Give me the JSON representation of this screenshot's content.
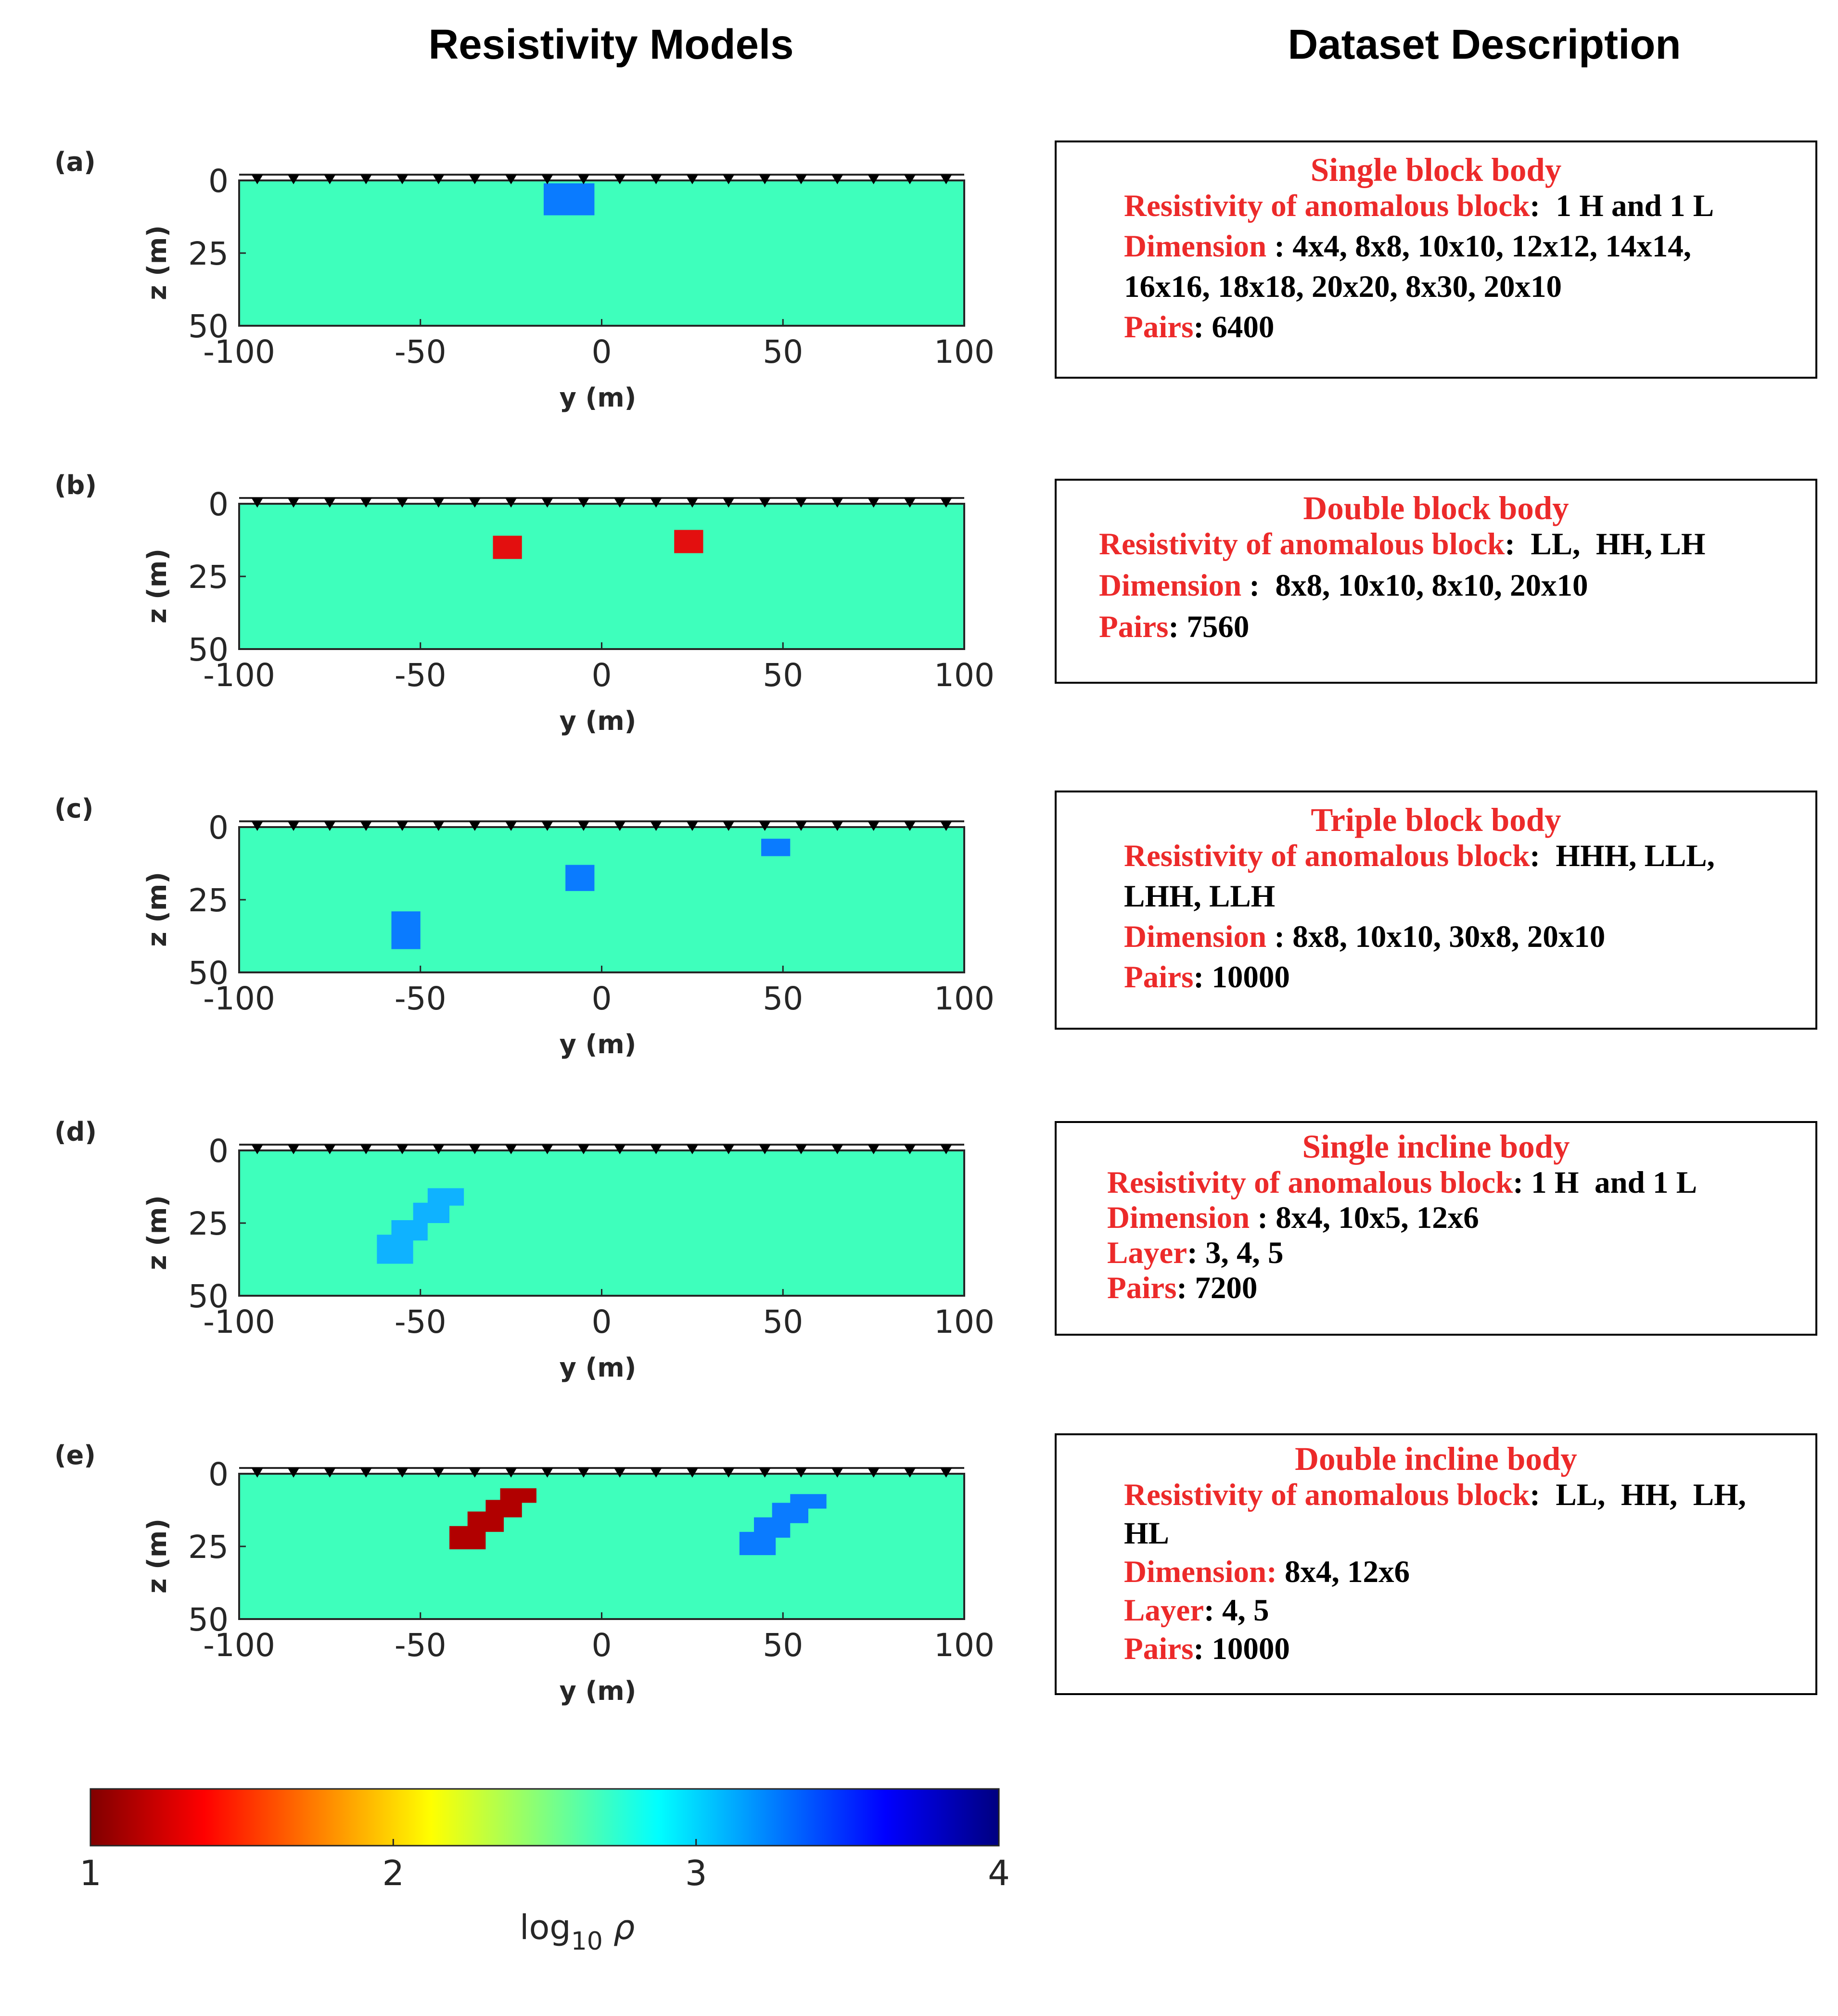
{
  "headers": {
    "left": "Resistivity Models",
    "right": "Dataset Description"
  },
  "colors": {
    "background": "#3effbc",
    "low": "#b10000",
    "mid_blue": "#0a7bff",
    "light_blue": "#0fb2ff",
    "red": "#e30f0f",
    "label_red": "#ec2a2a"
  },
  "panels": [
    {
      "id": "(a)",
      "xlabel": "y (m)",
      "ylabel": "z (m)",
      "xticks": [
        "-100",
        "-50",
        "0",
        "50",
        "100"
      ],
      "yticks": [
        "0",
        "25",
        "50"
      ],
      "xlim": [
        -100,
        100
      ],
      "ylim": [
        0,
        50
      ],
      "blocks": [
        {
          "y0": -16,
          "y1": -2,
          "z0": 1,
          "z1": 12,
          "color": "#0a7bff"
        }
      ]
    },
    {
      "id": "(b)",
      "xlabel": "y (m)",
      "ylabel": "z (m)",
      "xticks": [
        "-100",
        "-50",
        "0",
        "50",
        "100"
      ],
      "yticks": [
        "0",
        "25",
        "50"
      ],
      "xlim": [
        -100,
        100
      ],
      "ylim": [
        0,
        50
      ],
      "blocks": [
        {
          "y0": -30,
          "y1": -22,
          "z0": 11,
          "z1": 19,
          "color": "#e30f0f"
        },
        {
          "y0": 20,
          "y1": 28,
          "z0": 9,
          "z1": 17,
          "color": "#e30f0f"
        }
      ]
    },
    {
      "id": "(c)",
      "xlabel": "y (m)",
      "ylabel": "z (m)",
      "xticks": [
        "-100",
        "-50",
        "0",
        "50",
        "100"
      ],
      "yticks": [
        "0",
        "25",
        "50"
      ],
      "xlim": [
        -100,
        100
      ],
      "ylim": [
        0,
        50
      ],
      "blocks": [
        {
          "y0": -58,
          "y1": -50,
          "z0": 29,
          "z1": 42,
          "color": "#0a7bff"
        },
        {
          "y0": -10,
          "y1": -2,
          "z0": 13,
          "z1": 22,
          "color": "#0a7bff"
        },
        {
          "y0": 44,
          "y1": 52,
          "z0": 4,
          "z1": 10,
          "color": "#0a7bff"
        }
      ]
    },
    {
      "id": "(d)",
      "xlabel": "y (m)",
      "ylabel": "z (m)",
      "xticks": [
        "-100",
        "-50",
        "0",
        "50",
        "100"
      ],
      "yticks": [
        "0",
        "25",
        "50"
      ],
      "xlim": [
        -100,
        100
      ],
      "ylim": [
        0,
        50
      ],
      "blocks": [
        {
          "y0": -62,
          "y1": -52,
          "z0": 29,
          "z1": 39,
          "color": "#0fb2ff"
        },
        {
          "y0": -58,
          "y1": -48,
          "z0": 24,
          "z1": 31,
          "color": "#0fb2ff"
        },
        {
          "y0": -52,
          "y1": -42,
          "z0": 18,
          "z1": 25,
          "color": "#0fb2ff"
        },
        {
          "y0": -48,
          "y1": -38,
          "z0": 13,
          "z1": 19,
          "color": "#0fb2ff"
        }
      ]
    },
    {
      "id": "(e)",
      "xlabel": "y (m)",
      "ylabel": "z (m)",
      "xticks": [
        "-100",
        "-50",
        "0",
        "50",
        "100"
      ],
      "yticks": [
        "0",
        "25",
        "50"
      ],
      "xlim": [
        -100,
        100
      ],
      "ylim": [
        0,
        50
      ],
      "blocks": [
        {
          "y0": -42,
          "y1": -32,
          "z0": 18,
          "z1": 26,
          "color": "#b10000"
        },
        {
          "y0": -37,
          "y1": -27,
          "z0": 13,
          "z1": 20,
          "color": "#b10000"
        },
        {
          "y0": -32,
          "y1": -22,
          "z0": 9,
          "z1": 15,
          "color": "#b10000"
        },
        {
          "y0": -28,
          "y1": -18,
          "z0": 5,
          "z1": 10,
          "color": "#b10000"
        },
        {
          "y0": 38,
          "y1": 48,
          "z0": 20,
          "z1": 28,
          "color": "#0a7bff"
        },
        {
          "y0": 42,
          "y1": 52,
          "z0": 15,
          "z1": 22,
          "color": "#0a7bff"
        },
        {
          "y0": 47,
          "y1": 57,
          "z0": 10,
          "z1": 17,
          "color": "#0a7bff"
        },
        {
          "y0": 52,
          "y1": 62,
          "z0": 7,
          "z1": 12,
          "color": "#0a7bff"
        }
      ]
    }
  ],
  "colorbar": {
    "ticks": [
      "1",
      "2",
      "3",
      "4"
    ],
    "label_base": "log",
    "label_sub": "10",
    "label_var": "ρ"
  },
  "descriptions": [
    {
      "title": "Single block body",
      "lines": [
        {
          "label": "Resistivity of anomalous block",
          "value": ":  1 H and 1 L"
        },
        {
          "label": "Dimension",
          "value": " : 4x4, 8x8, 10x10, 12x12, 14x14,"
        },
        {
          "label": "",
          "value": "16x16, 18x18, 20x20, 8x30, 20x10"
        },
        {
          "label": "Pairs",
          "value": ": 6400"
        }
      ]
    },
    {
      "title": "Double block body",
      "lines": [
        {
          "label": "Resistivity of anomalous block",
          "value": ":  LL,  HH, LH"
        },
        {
          "label": "Dimension",
          "value": " :  8x8, 10x10, 8x10, 20x10"
        },
        {
          "label": "Pairs",
          "value": ": 7560"
        }
      ]
    },
    {
      "title": "Triple block body",
      "lines": [
        {
          "label": "Resistivity of anomalous block",
          "value": ":  HHH, LLL,"
        },
        {
          "label": "",
          "value": "LHH, LLH"
        },
        {
          "label": "Dimension",
          "value": " : 8x8, 10x10, 30x8, 20x10"
        },
        {
          "label": "Pairs",
          "value": ": 10000"
        }
      ]
    },
    {
      "title": "Single incline body",
      "lines": [
        {
          "label": "Resistivity of anomalous block",
          "value": ": 1 H  and 1 L"
        },
        {
          "label": "Dimension",
          "value": " : 8x4, 10x5, 12x6"
        },
        {
          "label": "Layer",
          "value": ": 3, 4, 5"
        },
        {
          "label": "Pairs",
          "value": ": 7200"
        }
      ]
    },
    {
      "title": "Double incline body",
      "lines": [
        {
          "label": "Resistivity of anomalous block",
          "value": ":  LL,  HH,  LH,"
        },
        {
          "label": "",
          "value": "HL"
        },
        {
          "label": "Dimension:",
          "value": " 8x4, 12x6"
        },
        {
          "label": "Layer",
          "value": ": 4, 5"
        },
        {
          "label": "Pairs",
          "value": ": 10000"
        }
      ]
    }
  ]
}
